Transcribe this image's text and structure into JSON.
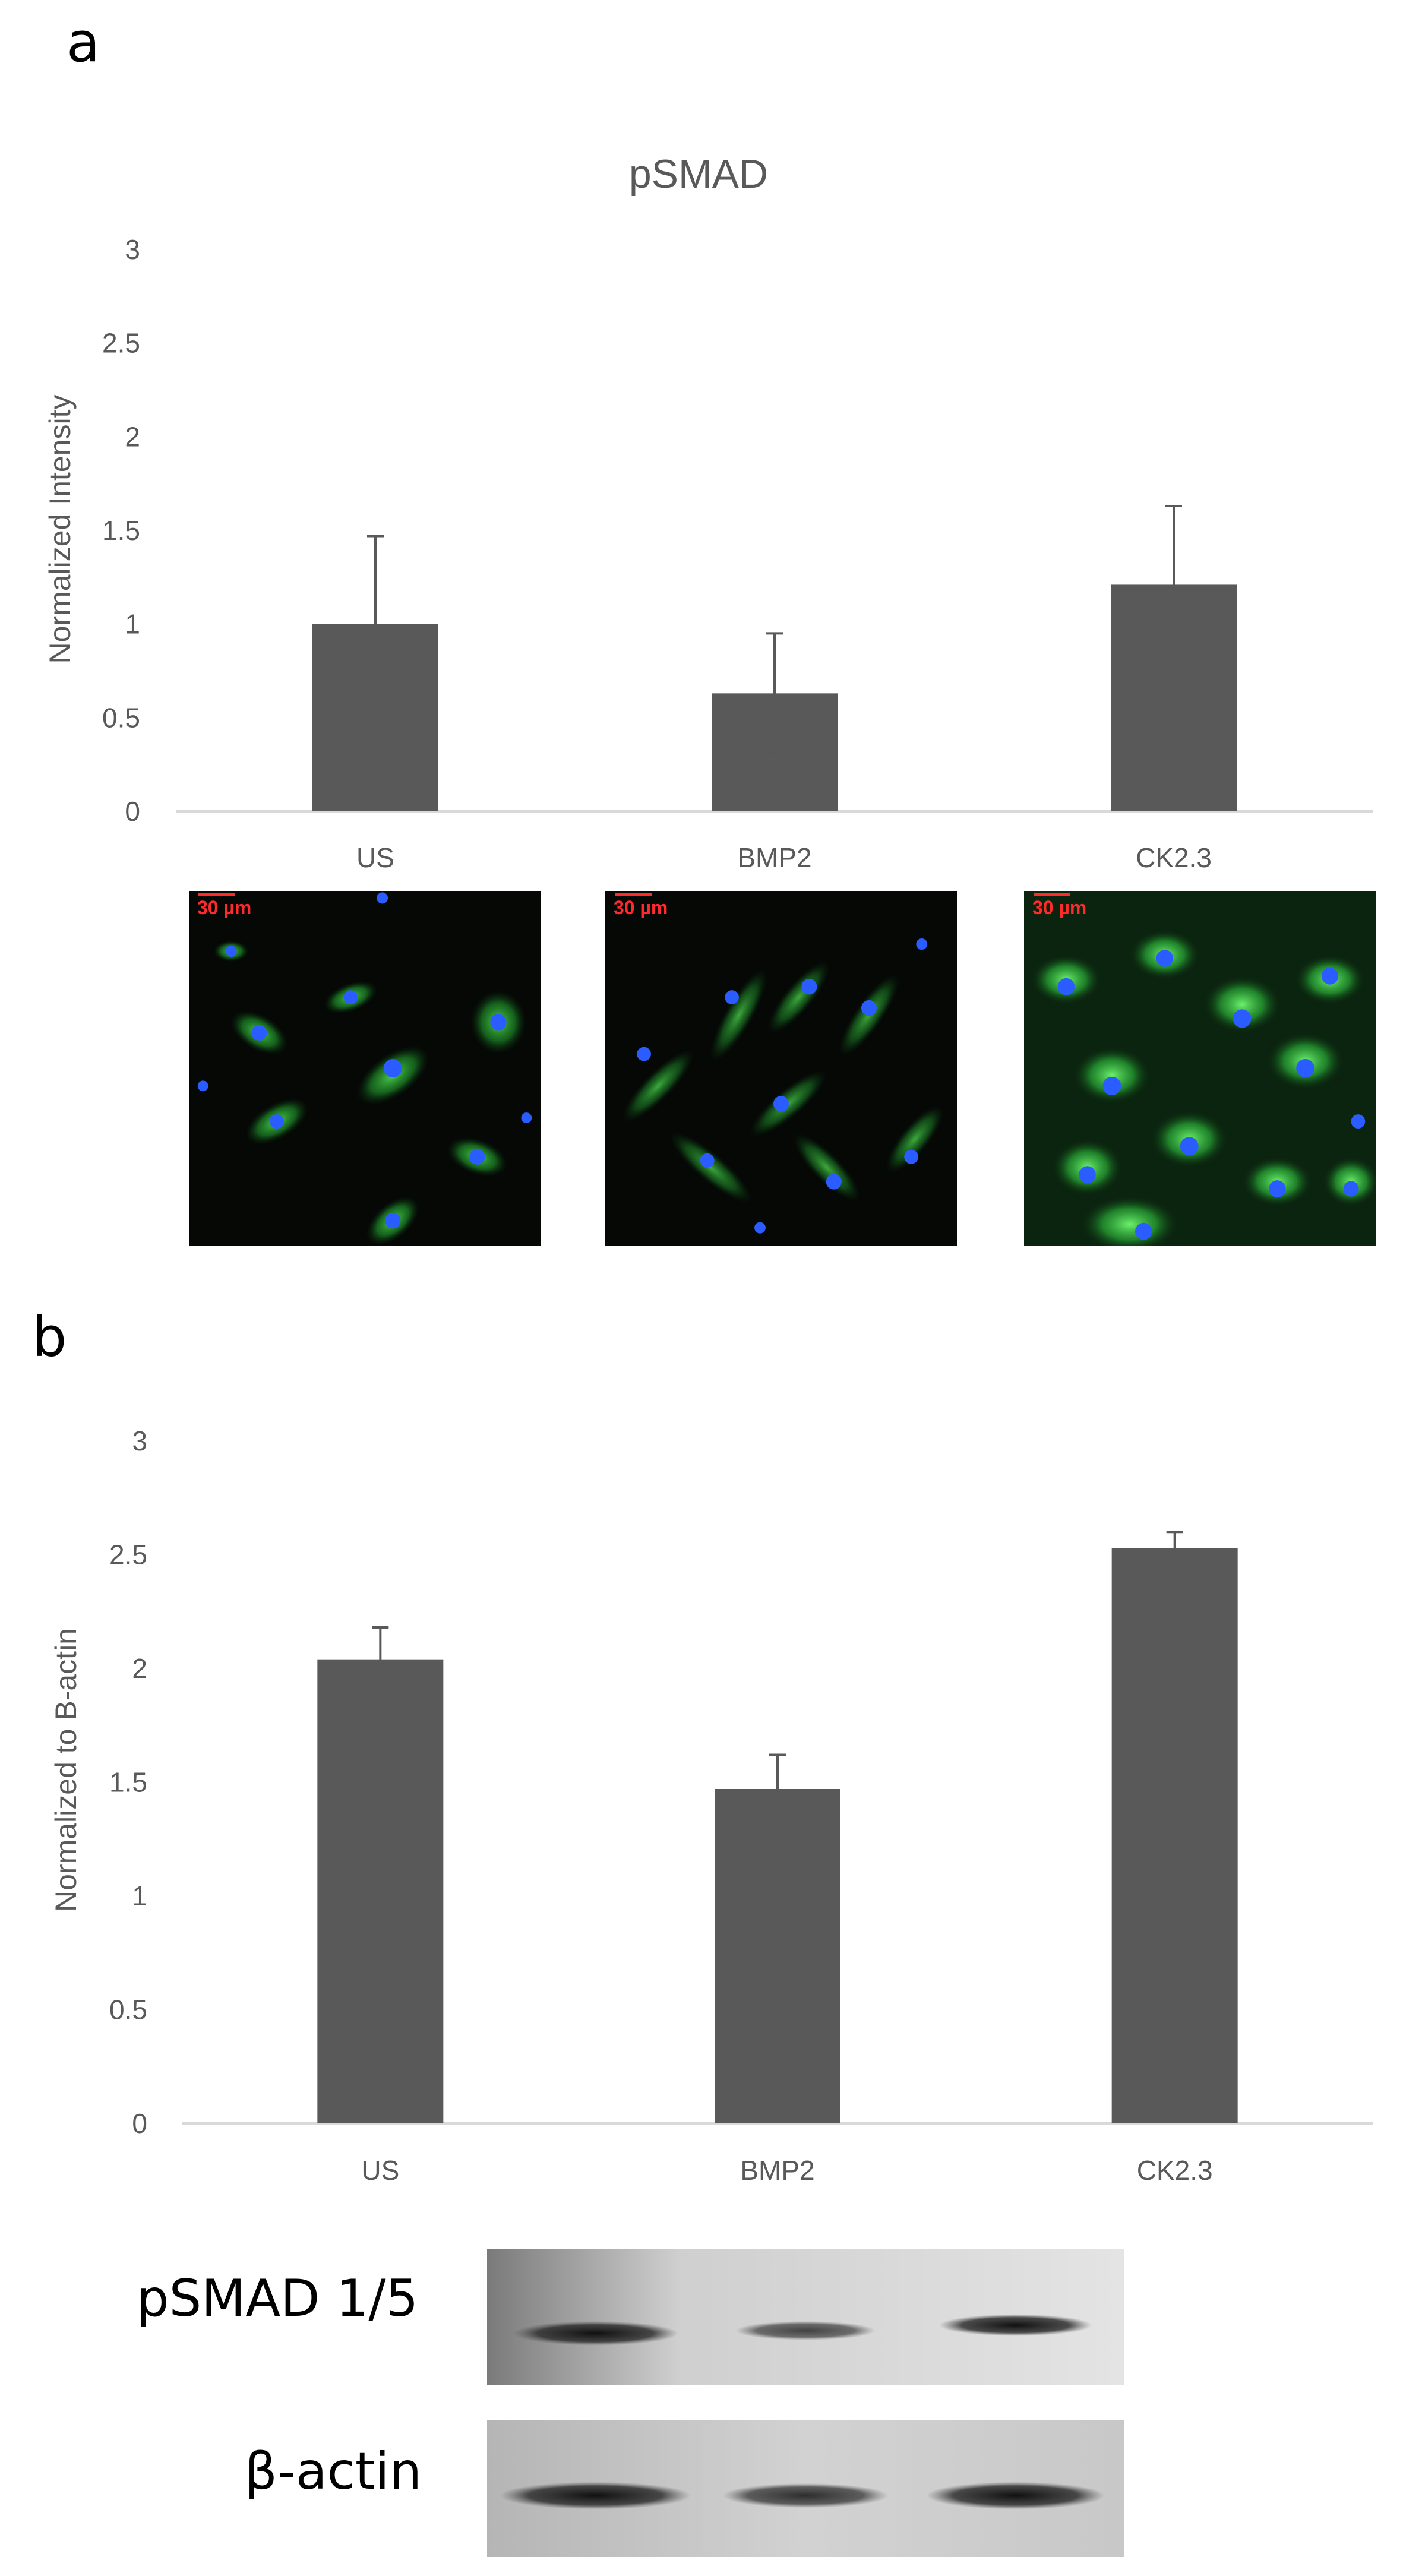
{
  "panel_a": {
    "letter": "a",
    "scale_labels": [
      "30 µm",
      "30 µm",
      "30 µm"
    ]
  },
  "panel_b": {
    "letter": "b",
    "blot_labels": {
      "top": "pSMAD 1/5",
      "bottom": "β-actin"
    }
  },
  "colors": {
    "bar": "#595959",
    "axis": "#d9d9d9",
    "text": "#595959",
    "scale": "#ff2a2a"
  },
  "chart_data": [
    {
      "type": "bar",
      "title": "pSMAD",
      "xlabel": "",
      "ylabel": "Normalized Intensity",
      "categories": [
        "US",
        "BMP2",
        "CK2.3"
      ],
      "values": [
        1.0,
        0.63,
        1.21
      ],
      "errors": [
        0.47,
        0.32,
        0.42
      ],
      "ylim": [
        0,
        3
      ],
      "yticks": [
        "0",
        "0.5",
        "1",
        "1.5",
        "2",
        "2.5",
        "3"
      ],
      "grid": false,
      "legend": "none"
    },
    {
      "type": "bar",
      "title": "",
      "xlabel": "",
      "ylabel": "Normalized to B-actin",
      "categories": [
        "US",
        "BMP2",
        "CK2.3"
      ],
      "values": [
        2.04,
        1.47,
        2.53
      ],
      "errors": [
        0.14,
        0.15,
        0.07
      ],
      "ylim": [
        0,
        3
      ],
      "yticks": [
        "0",
        "0.5",
        "1",
        "1.5",
        "2",
        "2.5",
        "3"
      ],
      "grid": false,
      "legend": "none"
    }
  ]
}
